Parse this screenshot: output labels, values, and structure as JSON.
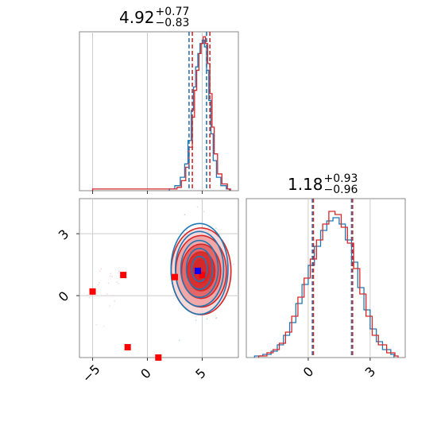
{
  "chart_data": {
    "type": "corner",
    "colors": {
      "series_a": "#1f77b4",
      "series_b": "#d62728",
      "marker": "#0000ff",
      "extra_marker": "#ff0000"
    },
    "param0": {
      "title": {
        "value": "4.92",
        "upper": "+0.77",
        "lower": "−0.83"
      },
      "xlim": [
        -6.2,
        8.3
      ],
      "ticks": [
        {
          "value": -5,
          "label": "−5"
        },
        {
          "value": 0,
          "label": "0"
        },
        {
          "value": 5,
          "label": "5"
        }
      ],
      "quantiles_a": [
        3.8,
        5.4
      ],
      "quantiles_b": [
        4.1,
        5.7
      ],
      "hist_a": [
        [
          2.0,
          1
        ],
        [
          2.5,
          3
        ],
        [
          3.0,
          8
        ],
        [
          3.4,
          16
        ],
        [
          3.7,
          30
        ],
        [
          4.0,
          48
        ],
        [
          4.2,
          62
        ],
        [
          4.4,
          74
        ],
        [
          4.6,
          82
        ],
        [
          4.8,
          88
        ],
        [
          5.0,
          90
        ],
        [
          5.2,
          86
        ],
        [
          5.4,
          72
        ],
        [
          5.6,
          54
        ],
        [
          5.8,
          34
        ],
        [
          6.0,
          18
        ],
        [
          6.3,
          8
        ],
        [
          6.7,
          3
        ],
        [
          7.2,
          1
        ]
      ],
      "hist_b": [
        [
          -5.0,
          1
        ],
        [
          -4.5,
          1
        ],
        [
          -3.5,
          1
        ],
        [
          2.2,
          1
        ],
        [
          2.7,
          2
        ],
        [
          3.1,
          6
        ],
        [
          3.5,
          14
        ],
        [
          3.8,
          26
        ],
        [
          4.1,
          44
        ],
        [
          4.3,
          60
        ],
        [
          4.5,
          72
        ],
        [
          4.7,
          82
        ],
        [
          4.9,
          88
        ],
        [
          5.1,
          92
        ],
        [
          5.3,
          88
        ],
        [
          5.5,
          76
        ],
        [
          5.7,
          58
        ],
        [
          5.9,
          38
        ],
        [
          6.1,
          22
        ],
        [
          6.4,
          10
        ],
        [
          6.8,
          4
        ],
        [
          7.3,
          1
        ]
      ]
    },
    "param1": {
      "title": {
        "value": "1.18",
        "upper": "+0.93",
        "lower": "−0.96"
      },
      "xlim": [
        -3.0,
        4.7
      ],
      "ticks": [
        {
          "value": 0,
          "label": "0"
        },
        {
          "value": 3,
          "label": "3"
        }
      ],
      "quantiles_a": [
        0.2,
        2.1
      ],
      "quantiles_b": [
        0.25,
        2.15
      ],
      "hist_a": [
        [
          -2.6,
          1
        ],
        [
          -2.2,
          2
        ],
        [
          -1.8,
          4
        ],
        [
          -1.5,
          8
        ],
        [
          -1.2,
          14
        ],
        [
          -0.9,
          22
        ],
        [
          -0.6,
          34
        ],
        [
          -0.3,
          46
        ],
        [
          0.0,
          58
        ],
        [
          0.3,
          70
        ],
        [
          0.6,
          80
        ],
        [
          0.9,
          86
        ],
        [
          1.2,
          88
        ],
        [
          1.5,
          84
        ],
        [
          1.8,
          74
        ],
        [
          2.1,
          60
        ],
        [
          2.4,
          44
        ],
        [
          2.7,
          30
        ],
        [
          3.0,
          18
        ],
        [
          3.3,
          10
        ],
        [
          3.6,
          5
        ],
        [
          4.0,
          2
        ]
      ],
      "hist_b": [
        [
          -2.4,
          1
        ],
        [
          -2.0,
          3
        ],
        [
          -1.7,
          5
        ],
        [
          -1.4,
          9
        ],
        [
          -1.1,
          16
        ],
        [
          -0.8,
          26
        ],
        [
          -0.5,
          38
        ],
        [
          -0.2,
          50
        ],
        [
          0.1,
          62
        ],
        [
          0.4,
          74
        ],
        [
          0.7,
          84
        ],
        [
          1.0,
          92
        ],
        [
          1.3,
          90
        ],
        [
          1.6,
          82
        ],
        [
          1.9,
          72
        ],
        [
          2.2,
          56
        ],
        [
          2.5,
          40
        ],
        [
          2.8,
          26
        ],
        [
          3.1,
          14
        ],
        [
          3.4,
          8
        ],
        [
          3.8,
          3
        ],
        [
          4.2,
          1
        ]
      ]
    },
    "joint": {
      "xlim": [
        -6.2,
        8.3
      ],
      "ylim": [
        -3.0,
        4.7
      ],
      "y_ticks": [
        {
          "value": 0,
          "label": "0"
        },
        {
          "value": 3,
          "label": "3"
        }
      ],
      "marker": [
        4.6,
        1.2
      ],
      "extra_markers": [
        [
          -5.0,
          0.2
        ],
        [
          -2.2,
          1.0
        ],
        [
          -1.8,
          -2.5
        ],
        [
          1.0,
          -3.0
        ],
        [
          2.5,
          0.9
        ],
        [
          5.0,
          1.0
        ]
      ],
      "contour_center": [
        4.9,
        1.18
      ],
      "contour_levels": [
        [
          0.35,
          0.55
        ],
        [
          0.6,
          0.9
        ],
        [
          0.85,
          1.25
        ],
        [
          1.1,
          1.65
        ],
        [
          1.3,
          2.0
        ]
      ]
    }
  }
}
